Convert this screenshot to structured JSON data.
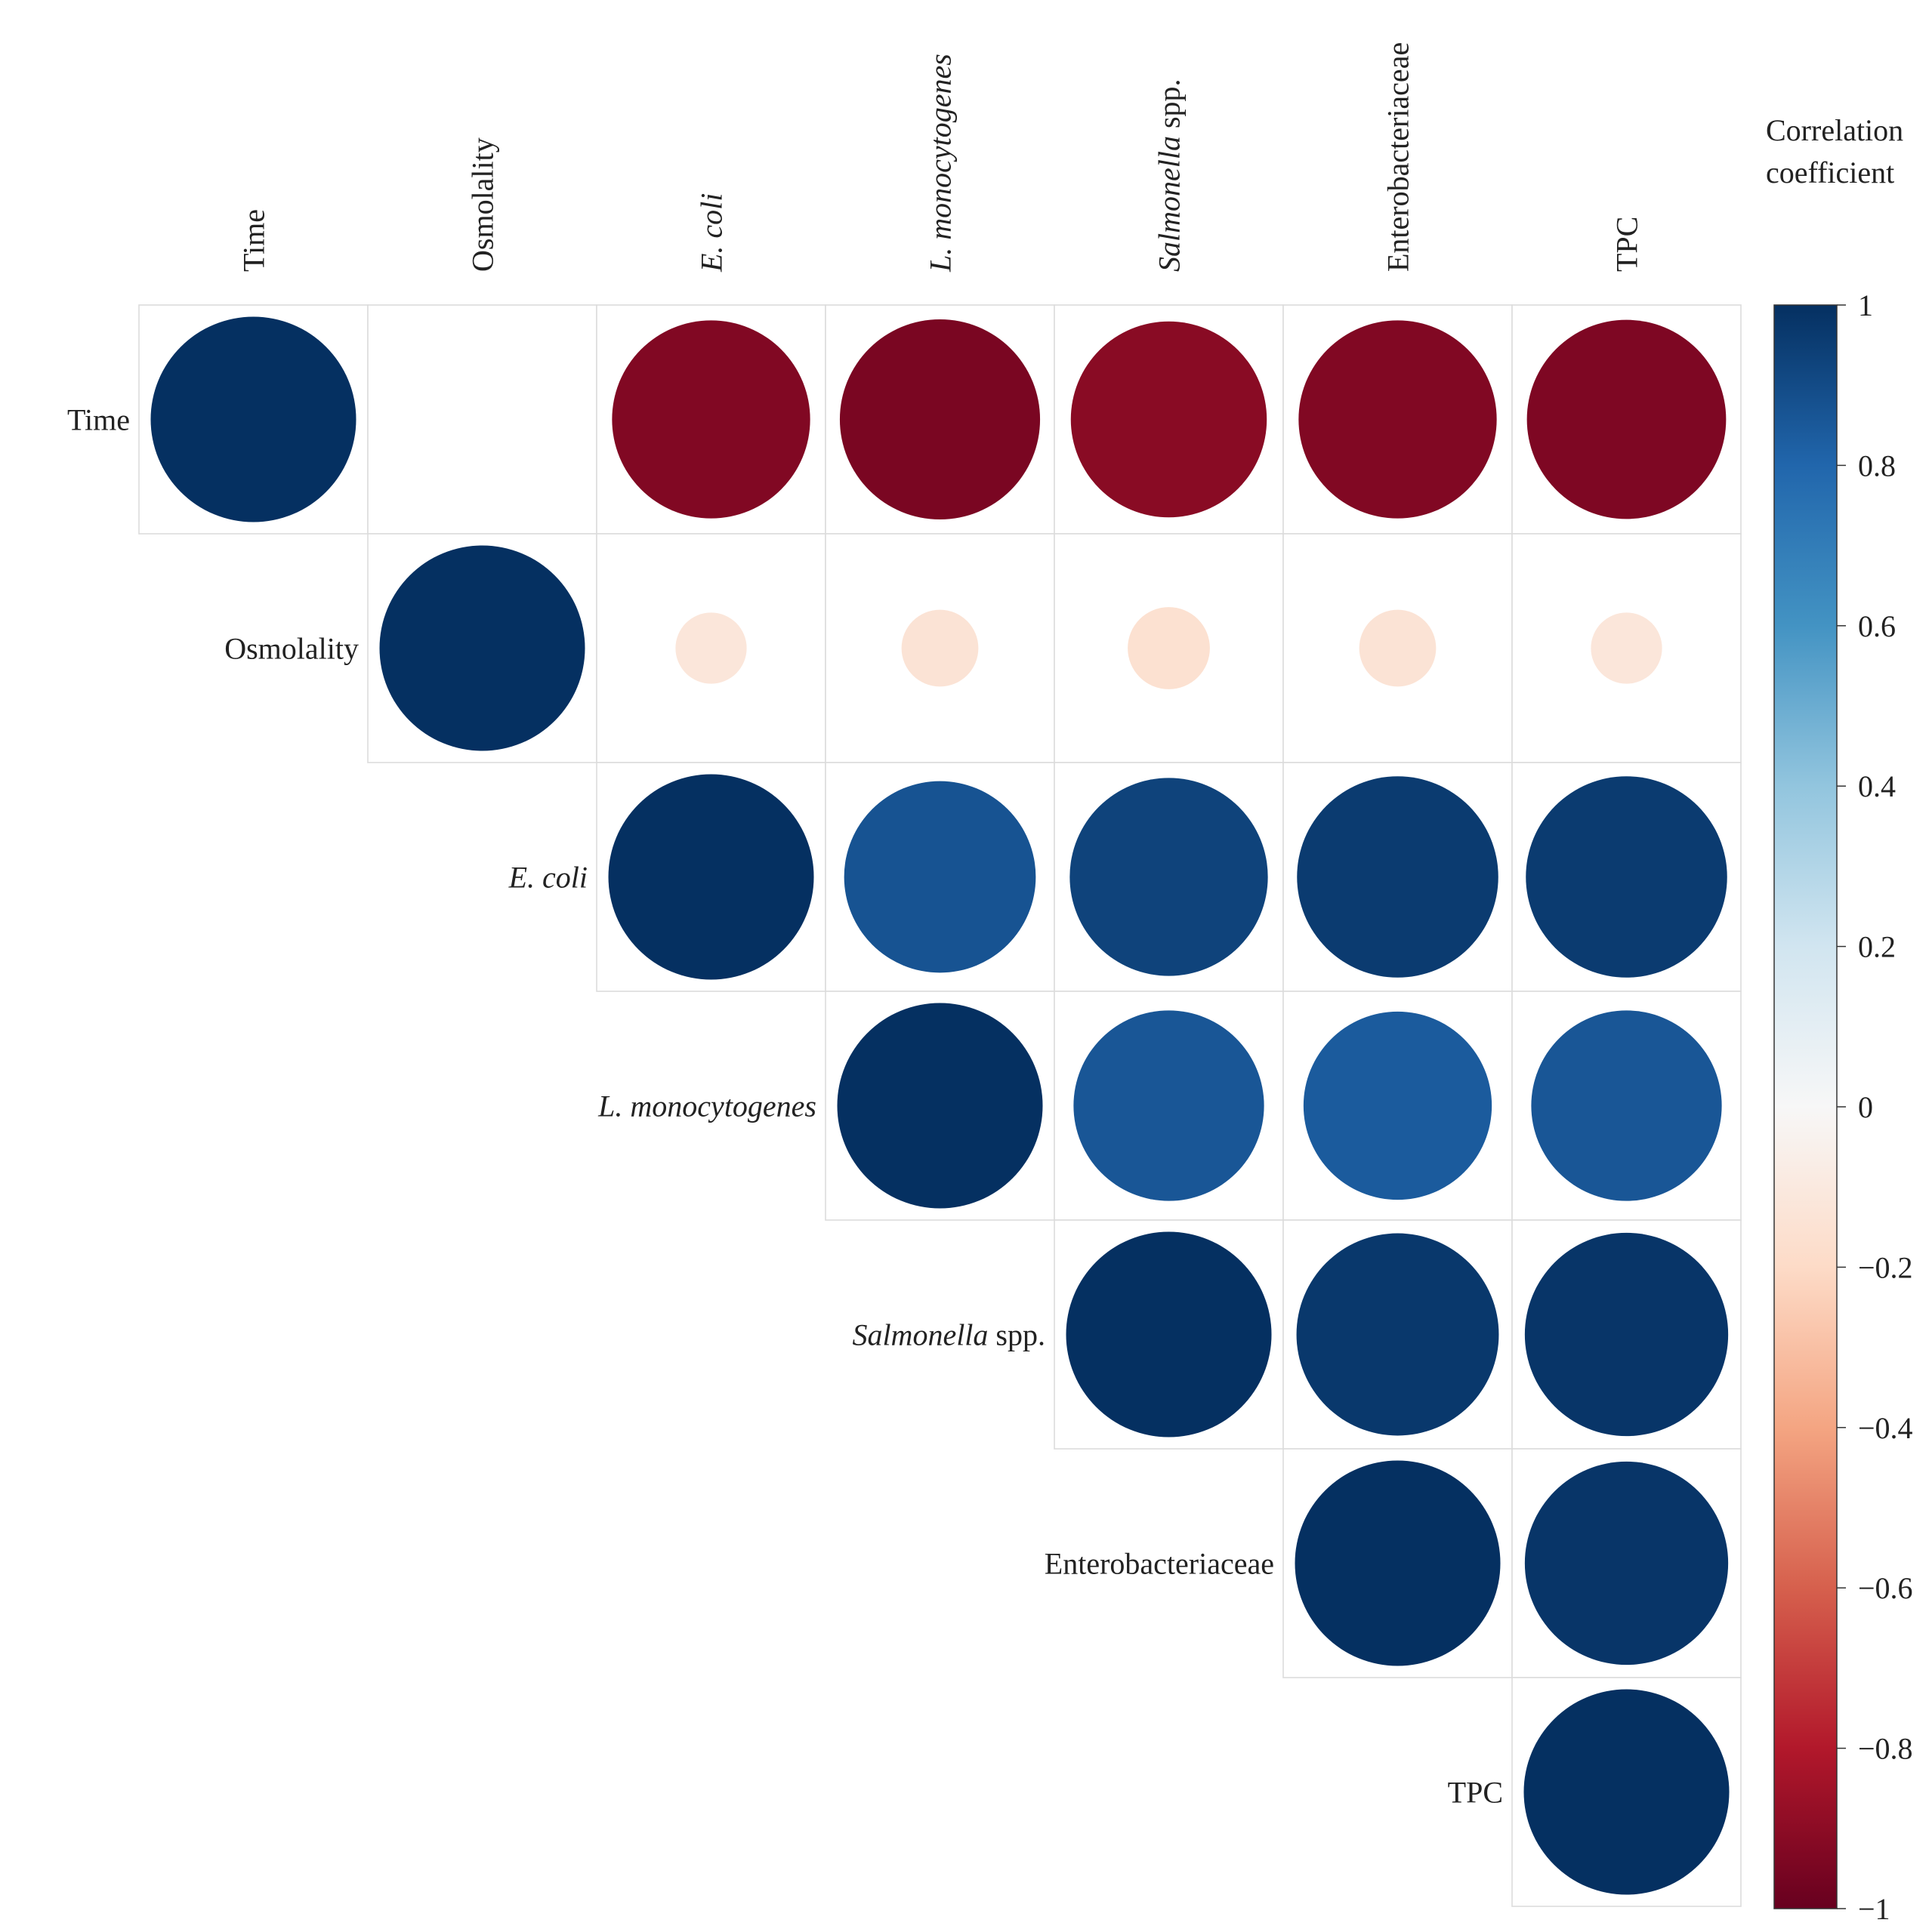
{
  "chart_data": {
    "type": "heatmap",
    "subtype": "correlation-circle-upper-triangle",
    "variables": [
      {
        "label": "Time",
        "italic_part": "",
        "plain_part": "Time"
      },
      {
        "label": "Osmolality",
        "italic_part": "",
        "plain_part": "Osmolality"
      },
      {
        "label": "E. coli",
        "italic_part": "E. coli",
        "plain_part": ""
      },
      {
        "label": "L. monocytogenes",
        "italic_part": "L. monocytogenes",
        "plain_part": ""
      },
      {
        "label": "Salmonella spp.",
        "italic_part": "Salmonella",
        "plain_part": " spp."
      },
      {
        "label": "Enterobacteriaceae",
        "italic_part": "",
        "plain_part": "Enterobacteriaceae"
      },
      {
        "label": "TPC",
        "italic_part": "",
        "plain_part": "TPC"
      }
    ],
    "matrix": [
      [
        1.0,
        0.0,
        -0.93,
        -0.95,
        -0.91,
        -0.93,
        -0.94
      ],
      [
        0.0,
        1.0,
        -0.12,
        -0.14,
        -0.16,
        -0.14,
        -0.12
      ],
      [
        -0.93,
        -0.12,
        1.0,
        0.87,
        0.93,
        0.96,
        0.96
      ],
      [
        -0.95,
        -0.14,
        0.87,
        1.0,
        0.86,
        0.84,
        0.86
      ],
      [
        -0.91,
        -0.16,
        0.93,
        0.86,
        1.0,
        0.97,
        0.98
      ],
      [
        -0.93,
        -0.14,
        0.96,
        0.84,
        0.97,
        1.0,
        0.98
      ],
      [
        -0.94,
        -0.12,
        0.96,
        0.86,
        0.98,
        0.98,
        1.0
      ]
    ],
    "legend": {
      "title_line1": "Correlation",
      "title_line2": "coefficient",
      "range": [
        -1,
        1
      ],
      "ticks": [
        {
          "value": 1,
          "label": "1"
        },
        {
          "value": 0.8,
          "label": "0.8"
        },
        {
          "value": 0.6,
          "label": "0.6"
        },
        {
          "value": 0.4,
          "label": "0.4"
        },
        {
          "value": 0.2,
          "label": "0.2"
        },
        {
          "value": 0,
          "label": "0"
        },
        {
          "value": -0.2,
          "label": "−0.2"
        },
        {
          "value": -0.4,
          "label": "−0.4"
        },
        {
          "value": -0.6,
          "label": "−0.6"
        },
        {
          "value": -0.8,
          "label": "−0.8"
        },
        {
          "value": -1,
          "label": "−1"
        }
      ],
      "placement": "right"
    },
    "colormap": [
      "#67001f",
      "#b2182b",
      "#d6604d",
      "#f4a582",
      "#fddbc7",
      "#f7f7f7",
      "#d1e5f0",
      "#92c5de",
      "#4393c3",
      "#2166ac",
      "#053061"
    ]
  }
}
